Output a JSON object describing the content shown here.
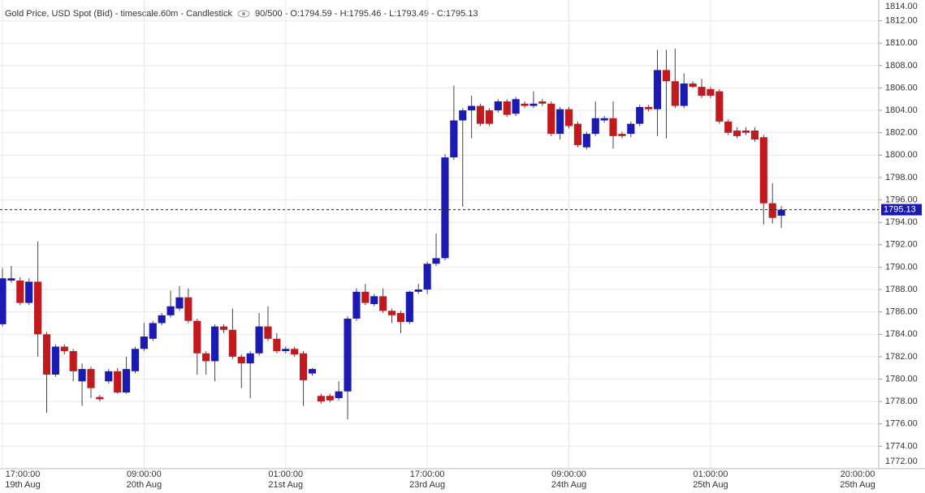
{
  "chart_data": {
    "type": "candlestick",
    "title": "Gold Price, USD Spot (Bid) - timescale.60m - Candlestick",
    "info": "90/500 - O:1794.59 - H:1795.46 - L:1793.49 - C:1795.13",
    "up_color": "#1b1bb3",
    "down_color": "#c01a1f",
    "grid": true,
    "categories": [
      [
        "17:00:00",
        "19th Aug"
      ],
      null,
      null,
      null,
      null,
      null,
      null,
      null,
      null,
      null,
      null,
      null,
      null,
      null,
      null,
      null,
      [
        "09:00:00",
        "20th Aug"
      ],
      null,
      null,
      null,
      null,
      null,
      null,
      null,
      null,
      null,
      null,
      null,
      null,
      null,
      null,
      null,
      [
        "01:00:00",
        "21st Aug"
      ],
      null,
      null,
      null,
      null,
      null,
      null,
      null,
      null,
      null,
      null,
      null,
      null,
      null,
      null,
      null,
      [
        "17:00:00",
        "23rd Aug"
      ],
      null,
      null,
      null,
      null,
      null,
      null,
      null,
      null,
      null,
      null,
      null,
      null,
      null,
      null,
      null,
      [
        "09:00:00",
        "24th Aug"
      ],
      null,
      null,
      null,
      null,
      null,
      null,
      null,
      null,
      null,
      null,
      null,
      null,
      null,
      null,
      null,
      [
        "01:00:00",
        "25th Aug"
      ],
      null,
      null,
      null,
      null,
      null,
      null,
      null,
      null,
      null,
      null,
      null,
      null,
      null,
      null,
      null,
      null,
      null,
      null,
      [
        "20:00:00",
        "25th Aug"
      ]
    ],
    "open": [
      1784.9,
      1788.8,
      1788.8,
      1786.8,
      1788.7,
      1784.0,
      1780.4,
      1782.9,
      1782.5,
      1779.8,
      1780.9,
      1778.4,
      1779.8,
      1780.7,
      1778.8,
      1780.7,
      1782.7,
      1783.6,
      1785.0,
      1785.7,
      1786.3,
      1787.3,
      1785.2,
      1782.3,
      1781.6,
      1784.7,
      1784.4,
      1782.0,
      1781.4,
      1782.3,
      1784.7,
      1783.6,
      1782.5,
      1782.7,
      1782.3,
      1780.5,
      1778.5,
      1778.5,
      1778.3,
      1778.9,
      1785.4,
      1787.8,
      1786.7,
      1787.4,
      1786.1,
      1785.9,
      1785.1,
      1787.8,
      1788.0,
      1790.3,
      1790.8,
      1799.8,
      1803.1,
      1804.0,
      1804.4,
      1804.0,
      1804.0,
      1804.8,
      1803.7,
      1804.6,
      1804.4,
      1804.8,
      1804.6,
      1801.9,
      1804.1,
      1802.8,
      1800.7,
      1801.9,
      1803.1,
      1803.3,
      1801.9,
      1801.9,
      1802.8,
      1804.3,
      1804.1,
      1807.6,
      1806.6,
      1804.4,
      1806.4,
      1806.1,
      1805.9,
      1805.7,
      1803.0,
      1802.2,
      1802.2,
      1802.2,
      1801.6,
      1795.7,
      1794.59,
      null,
      null,
      null,
      null,
      null,
      null,
      null,
      null,
      null,
      null,
      null
    ],
    "high": [
      1789.9,
      1790.1,
      1789.1,
      1789.0,
      1792.3,
      1784.2,
      1783.1,
      1783.1,
      1782.7,
      1781.4,
      1781.1,
      1778.6,
      1780.9,
      1781.0,
      1782.0,
      1782.9,
      1785.0,
      1785.2,
      1785.9,
      1787.9,
      1788.3,
      1788.1,
      1785.4,
      1782.5,
      1784.9,
      1784.9,
      1786.3,
      1782.2,
      1782.5,
      1785.9,
      1786.5,
      1784.1,
      1782.9,
      1782.9,
      1782.5,
      1781.0,
      1778.7,
      1778.7,
      1779.8,
      1785.6,
      1788.1,
      1788.5,
      1787.6,
      1788.1,
      1786.3,
      1786.1,
      1787.9,
      1788.5,
      1790.5,
      1793.0,
      1800.1,
      1806.2,
      1804.2,
      1805.3,
      1804.6,
      1804.2,
      1805.0,
      1805.0,
      1805.2,
      1804.8,
      1805.7,
      1805.0,
      1804.8,
      1804.3,
      1804.3,
      1803.0,
      1802.1,
      1804.8,
      1803.5,
      1804.8,
      1802.1,
      1803.0,
      1804.5,
      1804.5,
      1809.4,
      1809.4,
      1809.5,
      1807.3,
      1806.6,
      1806.8,
      1806.1,
      1805.9,
      1803.2,
      1802.5,
      1802.5,
      1802.5,
      1801.8,
      1797.5,
      1795.46,
      null,
      null,
      null,
      null,
      null,
      null,
      null,
      null,
      null,
      null,
      null
    ],
    "low": [
      1784.7,
      1788.6,
      1786.6,
      1786.6,
      1782.0,
      1777.0,
      1780.2,
      1782.2,
      1779.8,
      1777.6,
      1778.3,
      1778.0,
      1779.6,
      1778.7,
      1778.7,
      1780.5,
      1782.5,
      1783.4,
      1784.8,
      1785.5,
      1786.1,
      1785.0,
      1780.4,
      1780.4,
      1779.8,
      1784.1,
      1781.8,
      1779.2,
      1778.3,
      1782.1,
      1783.4,
      1782.3,
      1782.3,
      1782.0,
      1777.6,
      1780.3,
      1777.8,
      1777.9,
      1778.1,
      1776.4,
      1785.2,
      1786.6,
      1786.5,
      1785.9,
      1785.0,
      1784.1,
      1784.9,
      1787.6,
      1787.6,
      1790.1,
      1790.6,
      1799.6,
      1795.4,
      1801.5,
      1802.6,
      1802.6,
      1803.8,
      1803.4,
      1803.5,
      1804.2,
      1804.2,
      1804.4,
      1801.7,
      1801.4,
      1802.4,
      1800.7,
      1800.5,
      1801.7,
      1802.9,
      1800.6,
      1801.5,
      1801.6,
      1802.6,
      1803.9,
      1801.7,
      1801.5,
      1804.2,
      1804.2,
      1806.0,
      1805.1,
      1805.1,
      1802.8,
      1801.8,
      1801.5,
      1801.8,
      1801.2,
      1793.8,
      1793.9,
      1793.49,
      null,
      null,
      null,
      null,
      null,
      null,
      null,
      null,
      null,
      null,
      null
    ],
    "close": [
      1789.0,
      1789.0,
      1786.8,
      1788.7,
      1784.0,
      1780.4,
      1782.9,
      1782.5,
      1780.7,
      1780.9,
      1779.2,
      1778.2,
      1780.7,
      1778.8,
      1780.9,
      1782.7,
      1783.8,
      1785.0,
      1785.7,
      1786.5,
      1787.3,
      1785.2,
      1782.3,
      1781.6,
      1784.7,
      1784.4,
      1782.0,
      1781.4,
      1782.3,
      1784.7,
      1783.6,
      1782.5,
      1782.7,
      1782.2,
      1779.9,
      1780.9,
      1778.0,
      1778.1,
      1778.9,
      1785.4,
      1787.8,
      1786.8,
      1787.4,
      1786.1,
      1785.7,
      1785.1,
      1787.8,
      1788.0,
      1790.3,
      1790.8,
      1799.8,
      1803.1,
      1804.0,
      1804.4,
      1802.8,
      1802.8,
      1804.8,
      1803.6,
      1805.0,
      1804.4,
      1804.6,
      1804.6,
      1801.9,
      1804.1,
      1802.6,
      1800.9,
      1801.9,
      1803.3,
      1803.3,
      1801.7,
      1801.7,
      1802.8,
      1804.3,
      1804.1,
      1807.6,
      1806.6,
      1804.4,
      1806.4,
      1806.1,
      1805.3,
      1805.3,
      1803.0,
      1802.0,
      1801.7,
      1802.0,
      1801.4,
      1795.7,
      1794.4,
      1795.13,
      null,
      null,
      null,
      null,
      null,
      null,
      null,
      null,
      null,
      null,
      null
    ],
    "ylim": [
      1772,
      1814
    ],
    "yticks": [
      {
        "value": 1772,
        "label": "1772.00"
      },
      {
        "value": 1774,
        "label": "1774.00"
      },
      {
        "value": 1776,
        "label": "1776.00"
      },
      {
        "value": 1778,
        "label": "1778.00"
      },
      {
        "value": 1780,
        "label": "1780.00"
      },
      {
        "value": 1782,
        "label": "1782.00"
      },
      {
        "value": 1784,
        "label": "1784.00"
      },
      {
        "value": 1786,
        "label": "1786.00"
      },
      {
        "value": 1788,
        "label": "1788.00"
      },
      {
        "value": 1790,
        "label": "1790.00"
      },
      {
        "value": 1792,
        "label": "1792.00"
      },
      {
        "value": 1794,
        "label": "1794.00"
      },
      {
        "value": 1796,
        "label": "1796.00"
      },
      {
        "value": 1798,
        "label": "1798.00"
      },
      {
        "value": 1800,
        "label": "1800.00"
      },
      {
        "value": 1802,
        "label": "1802.00"
      },
      {
        "value": 1804,
        "label": "1804.00"
      },
      {
        "value": 1806,
        "label": "1806.00"
      },
      {
        "value": 1808,
        "label": "1808.00"
      },
      {
        "value": 1810,
        "label": "1810.00"
      },
      {
        "value": 1812,
        "label": "1812.00"
      },
      {
        "value": 1814,
        "label": "1814.00"
      }
    ]
  }
}
